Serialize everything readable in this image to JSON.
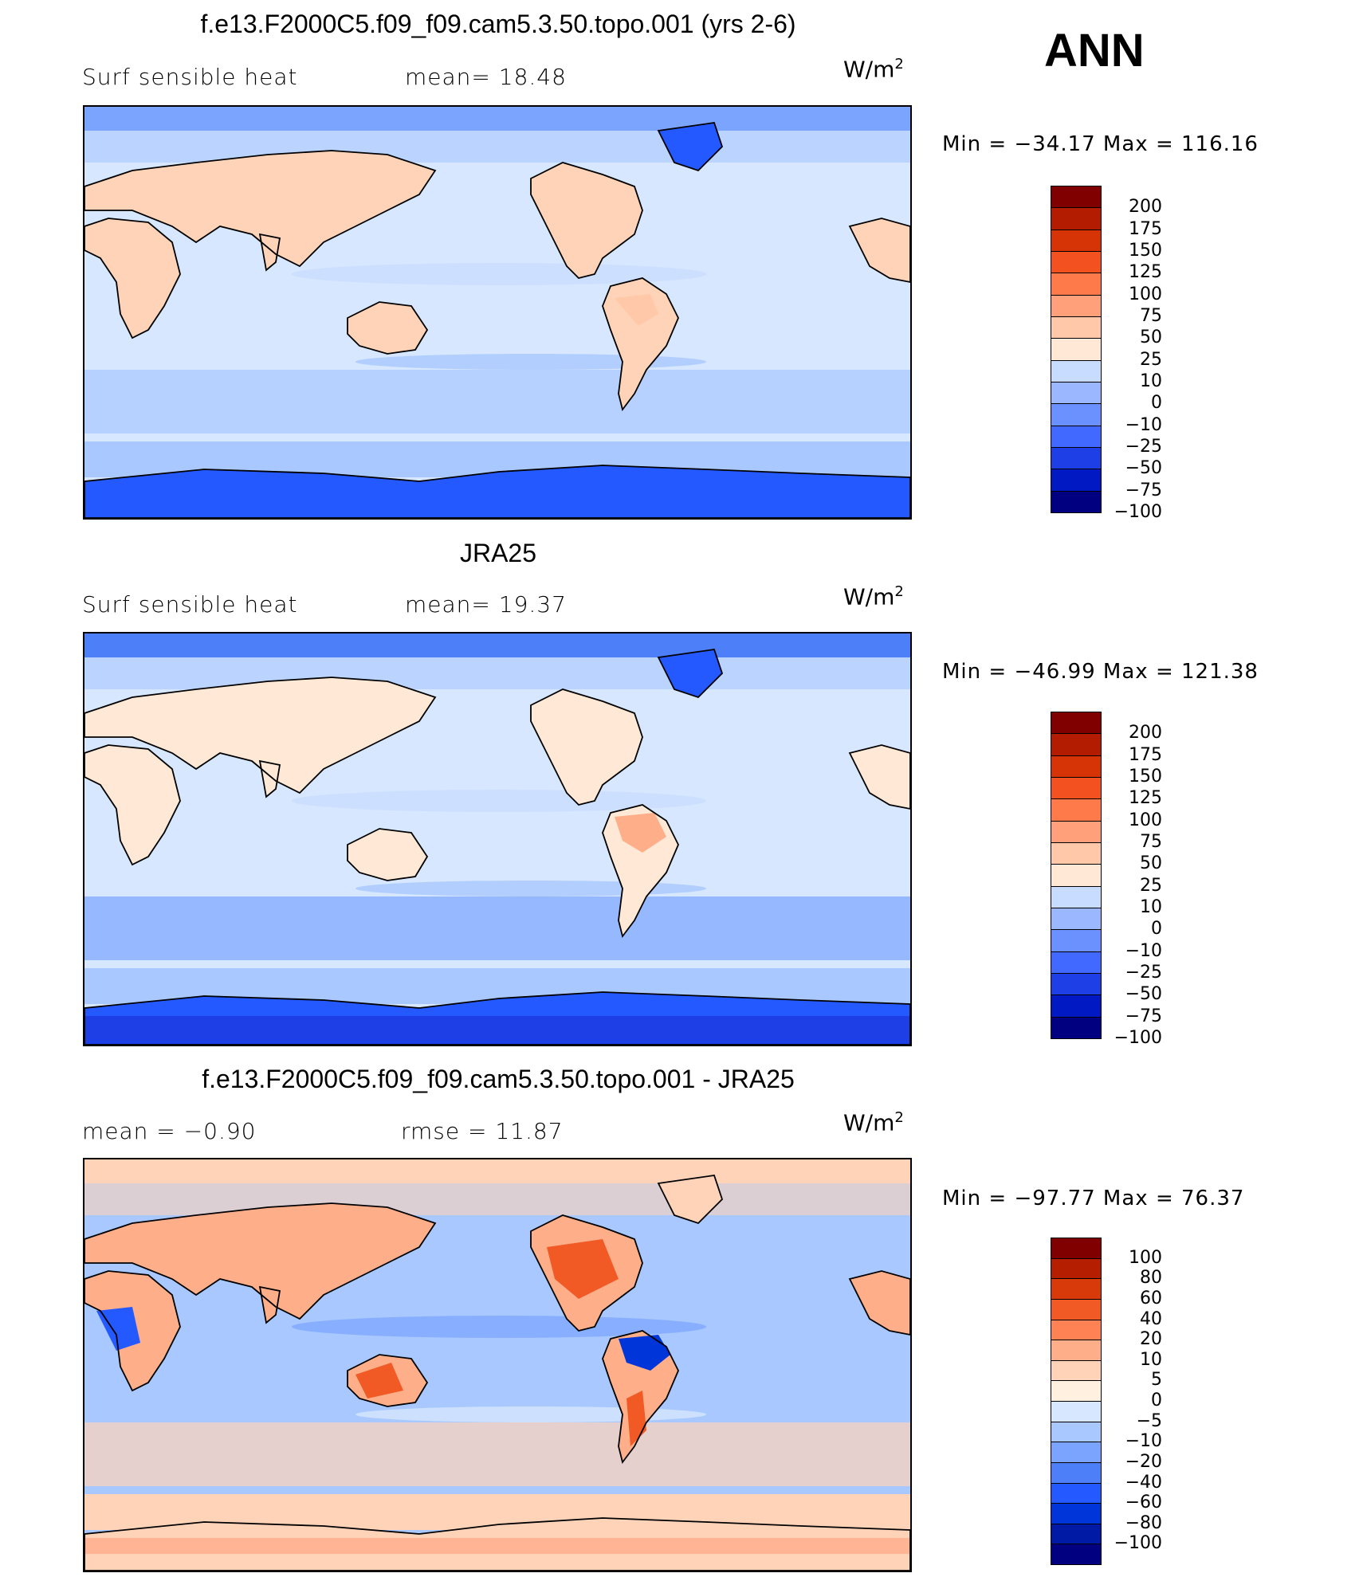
{
  "season_label": "ANN",
  "colors": {
    "model_obs_scale": [
      "#000080",
      "#0019c2",
      "#1f3fe6",
      "#4169ff",
      "#6b90ff",
      "#9ab7ff",
      "#c7dcff",
      "#ffe8d6",
      "#ffc8a8",
      "#ffa07a",
      "#ff7a4a",
      "#f3511f",
      "#d63307",
      "#b31c00",
      "#800000"
    ],
    "diff_scale": [
      "#000080",
      "#001aa6",
      "#0035d9",
      "#2459ff",
      "#4d7ff8",
      "#7ba4ff",
      "#a8c8ff",
      "#d6e7ff",
      "#fff0e0",
      "#ffd3b8",
      "#ffae8a",
      "#ff8254",
      "#f15a24",
      "#d93a0a",
      "#b51f00",
      "#800000"
    ]
  },
  "panels": [
    {
      "title": "f.e13.F2000C5.f09_f09.cam5.3.50.topo.001 (yrs 2-6)",
      "left_label": "Surf  sensible  heat",
      "center_label": "mean=   18.48",
      "units": "W/m",
      "units_sup": "2",
      "minmax": "Min  =  −34.17  Max  =  116.16",
      "levels": [
        "200",
        "175",
        "150",
        "125",
        "100",
        "75",
        "50",
        "25",
        "10",
        "0",
        "−10",
        "−25",
        "−50",
        "−75",
        "−100"
      ],
      "pattern": "model"
    },
    {
      "title": "JRA25",
      "left_label": "Surf  sensible  heat",
      "center_label": "mean=   19.37",
      "units": "W/m",
      "units_sup": "2",
      "minmax": "Min  =  −46.99  Max  =  121.38",
      "levels": [
        "200",
        "175",
        "150",
        "125",
        "100",
        "75",
        "50",
        "25",
        "10",
        "0",
        "−10",
        "−25",
        "−50",
        "−75",
        "−100"
      ],
      "pattern": "obs"
    },
    {
      "title": "f.e13.F2000C5.f09_f09.cam5.3.50.topo.001 - JRA25",
      "left_label": "mean  =    −0.90",
      "center_label": "rmse  =    11.87",
      "units": "W/m",
      "units_sup": "2",
      "minmax": "Min  =  −97.77  Max  =   76.37",
      "levels": [
        "100",
        "80",
        "60",
        "40",
        "20",
        "10",
        "5",
        "0",
        "−5",
        "−10",
        "−20",
        "−40",
        "−60",
        "−80",
        "−100"
      ],
      "pattern": "diff"
    }
  ]
}
